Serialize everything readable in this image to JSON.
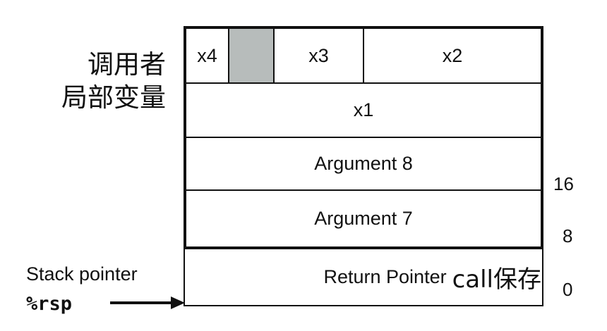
{
  "caller_locals_label": [
    "调用者",
    "局部变量"
  ],
  "top_row": {
    "x4": "x4",
    "x3": "x3",
    "x2": "x2",
    "shaded_color": "#b7bcbb"
  },
  "rows": {
    "x1": "x1",
    "arg8": "Argument 8",
    "arg7": "Argument 7"
  },
  "return_row": {
    "text": "Return Pointer",
    "suffix": "call保存"
  },
  "offsets": [
    "16",
    "8",
    "0"
  ],
  "stack_pointer": {
    "label": "Stack pointer",
    "register": "%rsp"
  }
}
